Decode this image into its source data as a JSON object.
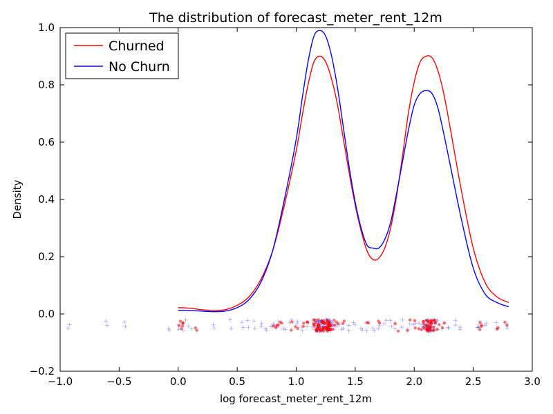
{
  "chart_data": {
    "type": "line",
    "title": "The distribution of forecast_meter_rent_12m",
    "xlabel": "log forecast_meter_rent_12m",
    "ylabel": "Density",
    "xlim": [
      -1.0,
      3.0
    ],
    "ylim": [
      -0.2,
      1.0
    ],
    "x_ticks": [
      -1.0,
      -0.5,
      0.0,
      0.5,
      1.0,
      1.5,
      2.0,
      2.5,
      3.0
    ],
    "x_tick_labels": [
      "−1.0",
      "−0.5",
      "0.0",
      "0.5",
      "1.0",
      "1.5",
      "2.0",
      "2.5",
      "3.0"
    ],
    "y_ticks": [
      -0.2,
      0.0,
      0.2,
      0.4,
      0.6,
      0.8,
      1.0
    ],
    "y_tick_labels": [
      "−0.2",
      "0.0",
      "0.2",
      "0.4",
      "0.6",
      "0.8",
      "1.0"
    ],
    "grid": false,
    "legend_position": "top-left",
    "series": [
      {
        "name": "Churned",
        "color": "#ff0000",
        "x": [
          0.0,
          0.1,
          0.2,
          0.3,
          0.4,
          0.5,
          0.6,
          0.7,
          0.8,
          0.9,
          1.0,
          1.05,
          1.1,
          1.15,
          1.2,
          1.25,
          1.3,
          1.35,
          1.4,
          1.45,
          1.5,
          1.55,
          1.6,
          1.65,
          1.7,
          1.75,
          1.8,
          1.85,
          1.9,
          1.95,
          2.0,
          2.05,
          2.1,
          2.15,
          2.2,
          2.25,
          2.3,
          2.4,
          2.5,
          2.6,
          2.7,
          2.8
        ],
        "y": [
          0.022,
          0.02,
          0.015,
          0.012,
          0.015,
          0.03,
          0.06,
          0.12,
          0.22,
          0.38,
          0.57,
          0.69,
          0.8,
          0.88,
          0.9,
          0.88,
          0.82,
          0.73,
          0.61,
          0.49,
          0.38,
          0.29,
          0.22,
          0.19,
          0.195,
          0.23,
          0.3,
          0.41,
          0.55,
          0.7,
          0.81,
          0.88,
          0.9,
          0.895,
          0.85,
          0.77,
          0.66,
          0.43,
          0.23,
          0.11,
          0.06,
          0.04
        ]
      },
      {
        "name": "No Churn",
        "color": "#0000ff",
        "x": [
          0.0,
          0.1,
          0.2,
          0.3,
          0.4,
          0.5,
          0.6,
          0.7,
          0.8,
          0.9,
          1.0,
          1.05,
          1.1,
          1.15,
          1.2,
          1.25,
          1.3,
          1.35,
          1.4,
          1.45,
          1.5,
          1.55,
          1.6,
          1.65,
          1.7,
          1.75,
          1.8,
          1.85,
          1.9,
          1.95,
          2.0,
          2.05,
          2.1,
          2.15,
          2.2,
          2.25,
          2.3,
          2.4,
          2.5,
          2.6,
          2.7,
          2.8
        ],
        "y": [
          0.012,
          0.012,
          0.01,
          0.008,
          0.01,
          0.022,
          0.05,
          0.11,
          0.22,
          0.4,
          0.61,
          0.75,
          0.88,
          0.97,
          0.99,
          0.97,
          0.9,
          0.79,
          0.65,
          0.51,
          0.39,
          0.3,
          0.24,
          0.23,
          0.23,
          0.26,
          0.32,
          0.42,
          0.53,
          0.64,
          0.73,
          0.77,
          0.78,
          0.77,
          0.72,
          0.63,
          0.53,
          0.33,
          0.16,
          0.07,
          0.04,
          0.025
        ]
      }
    ],
    "rug": [
      {
        "name": "Churned",
        "color": "#ff0000",
        "marker": "circle",
        "x": [
          0.02,
          0.03,
          0.05,
          0.15,
          0.82,
          0.85,
          0.88,
          0.95,
          1.0,
          1.05,
          1.1,
          1.15,
          1.18,
          1.2,
          1.22,
          1.24,
          1.26,
          1.28,
          1.3,
          1.35,
          1.4,
          1.6,
          1.7,
          1.85,
          1.95,
          2.0,
          2.05,
          2.1,
          2.12,
          2.14,
          2.16,
          2.2,
          2.25,
          2.55,
          2.56,
          2.7,
          2.78
        ]
      },
      {
        "name": "No Churn",
        "color": "#0000ff",
        "marker": "plus",
        "x": [
          -0.92,
          -0.6,
          -0.45,
          -0.08,
          0.0,
          0.05,
          0.1,
          0.3,
          0.45,
          0.55,
          0.6,
          0.65,
          0.7,
          0.75,
          0.8,
          0.82,
          0.85,
          0.9,
          0.95,
          1.0,
          1.05,
          1.1,
          1.15,
          1.18,
          1.2,
          1.22,
          1.24,
          1.26,
          1.28,
          1.3,
          1.35,
          1.4,
          1.45,
          1.5,
          1.55,
          1.6,
          1.65,
          1.7,
          1.75,
          1.8,
          1.85,
          1.9,
          1.95,
          2.0,
          2.05,
          2.1,
          2.12,
          2.14,
          2.16,
          2.2,
          2.25,
          2.3,
          2.35,
          2.4,
          2.55,
          2.56,
          2.6,
          2.7,
          2.78
        ]
      }
    ]
  }
}
